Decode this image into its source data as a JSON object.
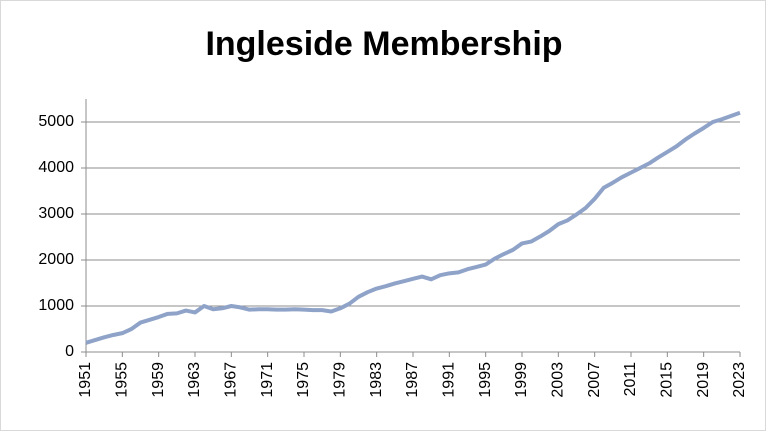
{
  "chart_data": {
    "type": "line",
    "title": "Ingleside Membership",
    "x": [
      1951,
      1952,
      1953,
      1954,
      1955,
      1956,
      1957,
      1958,
      1959,
      1960,
      1961,
      1962,
      1963,
      1964,
      1965,
      1966,
      1967,
      1968,
      1969,
      1970,
      1971,
      1972,
      1973,
      1974,
      1975,
      1976,
      1977,
      1978,
      1979,
      1980,
      1981,
      1982,
      1983,
      1984,
      1985,
      1986,
      1987,
      1988,
      1989,
      1990,
      1991,
      1992,
      1993,
      1994,
      1995,
      1996,
      1997,
      1998,
      1999,
      2000,
      2001,
      2002,
      2003,
      2004,
      2005,
      2006,
      2007,
      2008,
      2009,
      2010,
      2011,
      2012,
      2013,
      2014,
      2015,
      2016,
      2017,
      2018,
      2019,
      2020,
      2021,
      2022,
      2023
    ],
    "series": [
      {
        "name": "Membership",
        "color": "#8fa3c9",
        "values": [
          200,
          260,
          320,
          370,
          410,
          500,
          640,
          700,
          760,
          830,
          840,
          900,
          860,
          1000,
          930,
          950,
          1000,
          970,
          920,
          930,
          930,
          920,
          920,
          930,
          920,
          910,
          910,
          880,
          950,
          1050,
          1200,
          1300,
          1380,
          1430,
          1490,
          1540,
          1590,
          1640,
          1580,
          1670,
          1710,
          1730,
          1800,
          1850,
          1900,
          2030,
          2130,
          2220,
          2360,
          2400,
          2510,
          2630,
          2780,
          2860,
          2990,
          3130,
          3330,
          3570,
          3680,
          3800,
          3900,
          4000,
          4100,
          4230,
          4350,
          4470,
          4620,
          4750,
          4870,
          5000,
          5060,
          5130,
          5200
        ]
      }
    ],
    "xlim": [
      1951,
      2023
    ],
    "xticks": [
      1951,
      1955,
      1959,
      1963,
      1967,
      1971,
      1975,
      1979,
      1983,
      1987,
      1991,
      1995,
      1999,
      2003,
      2007,
      2011,
      2015,
      2019,
      2023
    ],
    "ylim": [
      0,
      5500
    ],
    "yticks": [
      0,
      1000,
      2000,
      3000,
      4000,
      5000
    ],
    "grid": true
  }
}
